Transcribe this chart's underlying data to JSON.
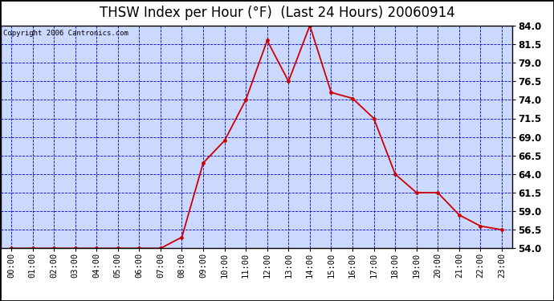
{
  "title": "THSW Index per Hour (°F)  (Last 24 Hours) 20060914",
  "copyright": "Copyright 2006 Cantronics.com",
  "x_labels": [
    "00:00",
    "01:00",
    "02:00",
    "03:00",
    "04:00",
    "05:00",
    "06:00",
    "07:00",
    "08:00",
    "09:00",
    "10:00",
    "11:00",
    "12:00",
    "13:00",
    "14:00",
    "15:00",
    "16:00",
    "17:00",
    "18:00",
    "19:00",
    "20:00",
    "21:00",
    "22:00",
    "23:00"
  ],
  "y_values": [
    54.0,
    54.0,
    54.0,
    54.0,
    54.0,
    54.0,
    54.0,
    54.0,
    55.5,
    65.5,
    68.5,
    74.0,
    82.0,
    76.5,
    84.0,
    75.0,
    74.2,
    71.5,
    64.0,
    61.5,
    61.5,
    58.5,
    57.0,
    56.5
  ],
  "ylim": [
    54.0,
    84.0
  ],
  "yticks": [
    54.0,
    56.5,
    59.0,
    61.5,
    64.0,
    66.5,
    69.0,
    71.5,
    74.0,
    76.5,
    79.0,
    81.5,
    84.0
  ],
  "line_color": "#cc0000",
  "marker_color": "#cc0000",
  "bg_color": "#ccd9ff",
  "title_bg": "#ffffff",
  "grid_color": "#0000bb",
  "title_color": "#000000",
  "border_color": "#000000",
  "title_fontsize": 12,
  "copyright_fontsize": 6.5,
  "tick_fontsize": 7.5,
  "ytick_fontsize": 8.5
}
